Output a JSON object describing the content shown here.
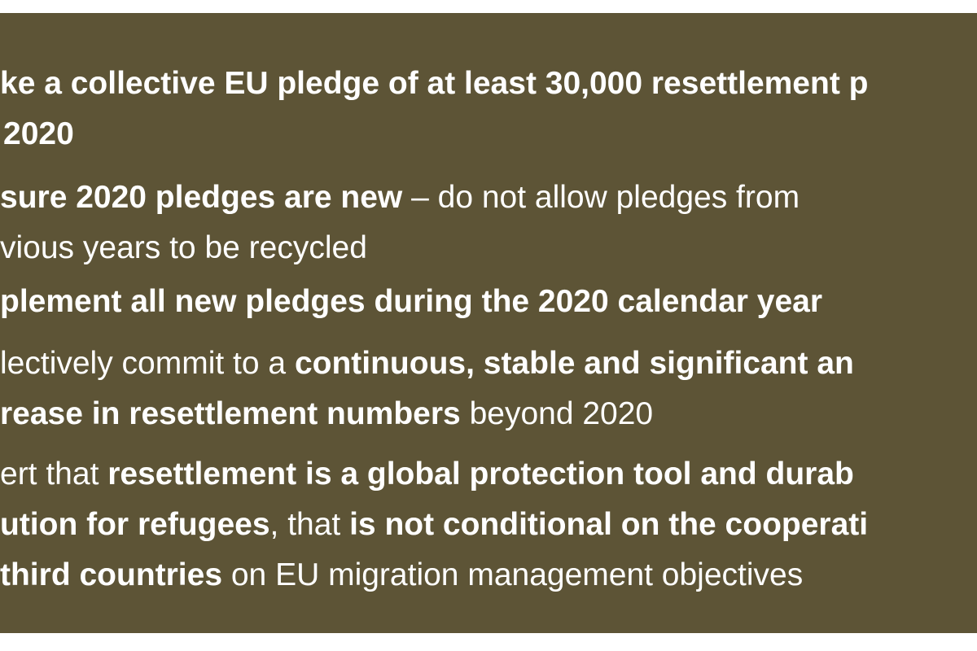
{
  "items": [
    {
      "lines": [
        {
          "runs": [
            {
              "bold": true,
              "text": "ke a collective EU pledge of at least 30,000 resettlement p"
            }
          ]
        },
        {
          "runs": [
            {
              "bold": true,
              "text": "2020"
            }
          ]
        }
      ]
    },
    {
      "lines": [
        {
          "runs": [
            {
              "bold": true,
              "text": "sure 2020 pledges are new"
            },
            {
              "bold": false,
              "text": " – do not allow pledges from"
            }
          ]
        },
        {
          "runs": [
            {
              "bold": false,
              "text": "vious years to be recycled"
            }
          ]
        }
      ]
    },
    {
      "lines": [
        {
          "runs": [
            {
              "bold": true,
              "text": "plement all new pledges during the 2020 calendar year"
            }
          ]
        }
      ]
    },
    {
      "lines": [
        {
          "runs": [
            {
              "bold": false,
              "text": "lectively commit to a "
            },
            {
              "bold": true,
              "text": "continuous, stable and significant an"
            }
          ]
        },
        {
          "runs": [
            {
              "bold": true,
              "text": "rease in resettlement numbers"
            },
            {
              "bold": false,
              "text": " beyond 2020"
            }
          ]
        }
      ]
    },
    {
      "lines": [
        {
          "runs": [
            {
              "bold": false,
              "text": "ert that "
            },
            {
              "bold": true,
              "text": "resettlement is a global protection tool and durab"
            }
          ]
        },
        {
          "runs": [
            {
              "bold": true,
              "text": "ution for refugees"
            },
            {
              "bold": false,
              "text": ", that "
            },
            {
              "bold": true,
              "text": "is not conditional on the cooperati"
            }
          ]
        },
        {
          "runs": [
            {
              "bold": true,
              "text": "third countries"
            },
            {
              "bold": false,
              "text": " on EU migration management objectives"
            }
          ]
        }
      ]
    }
  ]
}
